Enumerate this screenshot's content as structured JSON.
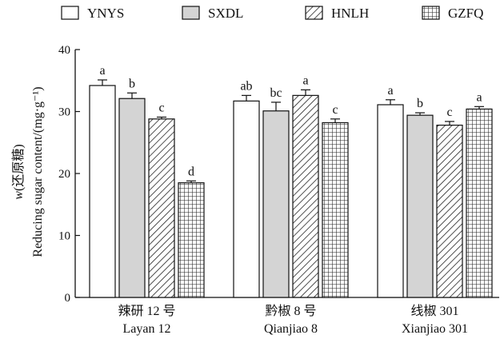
{
  "chart_data": {
    "type": "bar",
    "ylabel_italic": "w",
    "ylabel": "(还原糖)",
    "ylabel_line2": "Reducing sugar content/(mg·g⁻¹)",
    "ylim": [
      0,
      40
    ],
    "yticks": [
      0,
      10,
      20,
      30,
      40
    ],
    "grid": false,
    "legend_position": "top",
    "groups": [
      {
        "label_cn": "辣研 12 号",
        "label_en": "Layan 12"
      },
      {
        "label_cn": "黔椒 8 号",
        "label_en": "Qianjiao 8"
      },
      {
        "label_cn": "线椒 301",
        "label_en": "Xianjiao 301"
      }
    ],
    "series": [
      {
        "name": "YNYS",
        "pattern": "white",
        "values": [
          34.2,
          31.7,
          31.1
        ],
        "errors": [
          0.9,
          0.9,
          0.8
        ],
        "letters": [
          "a",
          "ab",
          "a"
        ]
      },
      {
        "name": "SXDL",
        "pattern": "gray",
        "values": [
          32.1,
          30.1,
          29.4
        ],
        "errors": [
          0.9,
          1.4,
          0.4
        ],
        "letters": [
          "b",
          "bc",
          "b"
        ]
      },
      {
        "name": "HNLH",
        "pattern": "hatch",
        "values": [
          28.8,
          32.6,
          27.8
        ],
        "errors": [
          0.3,
          0.9,
          0.6
        ],
        "letters": [
          "c",
          "a",
          "c"
        ]
      },
      {
        "name": "GZFQ",
        "pattern": "grid",
        "values": [
          18.5,
          28.2,
          30.4
        ],
        "errors": [
          0.3,
          0.6,
          0.4
        ],
        "letters": [
          "d",
          "c",
          "a"
        ]
      }
    ]
  }
}
